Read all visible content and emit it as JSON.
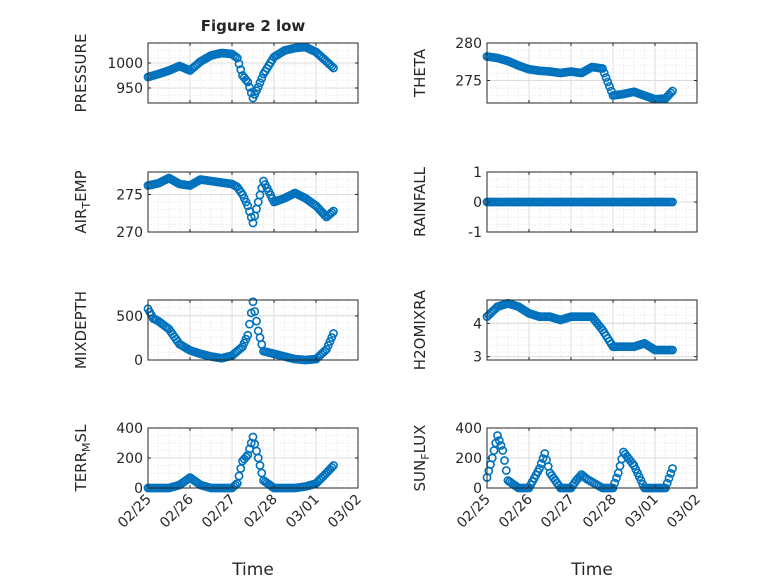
{
  "chart_data": [
    {
      "type": "scatter",
      "title": "Figure 2 low",
      "ylabel": "PRESSURE",
      "xlabel": "",
      "ylim": [
        920,
        1040
      ],
      "yticks": [
        950,
        1000
      ],
      "ytick_labels": [
        "950",
        "1000"
      ],
      "xticks": [
        "02/25",
        "02/26",
        "02/27",
        "02/28",
        "03/01",
        "03/02"
      ],
      "xtick_labels": [],
      "grid": true,
      "marker_color": "#0072BD",
      "x": [
        "02/25",
        "02/25 06:00",
        "02/25 12:00",
        "02/25 18:00",
        "02/26",
        "02/26 06:00",
        "02/26 12:00",
        "02/26 18:00",
        "02/27",
        "02/27 03:00",
        "02/27 06:00",
        "02/27 09:00",
        "02/27 12:00",
        "02/27 15:00",
        "02/27 18:00",
        "02/28",
        "02/28 06:00",
        "02/28 12:00",
        "02/28 18:00",
        "03/01",
        "03/01 06:00",
        "03/01 10:00"
      ],
      "y": [
        972,
        978,
        985,
        994,
        985,
        1003,
        1015,
        1020,
        1018,
        1010,
        975,
        962,
        930,
        952,
        978,
        1012,
        1025,
        1030,
        1032,
        1022,
        1003,
        990
      ]
    },
    {
      "type": "scatter",
      "title": "",
      "ylabel": "THETA",
      "xlabel": "",
      "ylim": [
        272,
        280
      ],
      "yticks": [
        275,
        280
      ],
      "ytick_labels": [
        "275",
        "280"
      ],
      "xticks": [
        "02/25",
        "02/26",
        "02/27",
        "02/28",
        "03/01",
        "03/02"
      ],
      "xtick_labels": [],
      "grid": true,
      "marker_color": "#0072BD",
      "x": [
        "02/25",
        "02/25 06:00",
        "02/25 12:00",
        "02/25 18:00",
        "02/26",
        "02/26 06:00",
        "02/26 12:00",
        "02/26 18:00",
        "02/27",
        "02/27 06:00",
        "02/27 12:00",
        "02/27 18:00",
        "02/28",
        "02/28 06:00",
        "02/28 12:00",
        "02/28 18:00",
        "03/01",
        "03/01 06:00",
        "03/01 10:00"
      ],
      "y": [
        278.2,
        278,
        277.6,
        277,
        276.5,
        276.3,
        276.2,
        276,
        276.2,
        276,
        276.8,
        276.6,
        273,
        273.2,
        273.5,
        273,
        272.5,
        272.6,
        273.6
      ]
    },
    {
      "type": "scatter",
      "title": "",
      "ylabel": "AIR_TEMP",
      "xlabel": "",
      "ylim": [
        270,
        278
      ],
      "yticks": [
        270,
        275
      ],
      "ytick_labels": [
        "270",
        "275"
      ],
      "xticks": [
        "02/25",
        "02/26",
        "02/27",
        "02/28",
        "03/01",
        "03/02"
      ],
      "xtick_labels": [],
      "grid": true,
      "marker_color": "#0072BD",
      "x": [
        "02/25",
        "02/25 06:00",
        "02/25 12:00",
        "02/25 18:00",
        "02/26",
        "02/26 06:00",
        "02/26 12:00",
        "02/26 18:00",
        "02/27",
        "02/27 03:00",
        "02/27 06:00",
        "02/27 09:00",
        "02/27 12:00",
        "02/27 15:00",
        "02/27 18:00",
        "02/28",
        "02/28 06:00",
        "02/28 12:00",
        "02/28 18:00",
        "03/01",
        "03/01 06:00",
        "03/01 10:00"
      ],
      "y": [
        276.2,
        276.5,
        277.2,
        276.4,
        276.2,
        277,
        276.8,
        276.6,
        276.4,
        276,
        275,
        273.5,
        271.2,
        274,
        276.8,
        274,
        274.5,
        275.2,
        274.5,
        273.5,
        272,
        272.8
      ]
    },
    {
      "type": "scatter",
      "title": "",
      "ylabel": "RAINFALL",
      "xlabel": "",
      "ylim": [
        -1,
        1
      ],
      "yticks": [
        -1,
        0,
        1
      ],
      "ytick_labels": [
        "-1",
        "0",
        "1"
      ],
      "xticks": [
        "02/25",
        "02/26",
        "02/27",
        "02/28",
        "03/01",
        "03/02"
      ],
      "xtick_labels": [],
      "grid": true,
      "marker_color": "#0072BD",
      "x": [
        "02/25",
        "02/25 06:00",
        "02/25 12:00",
        "02/25 18:00",
        "02/26",
        "02/26 06:00",
        "02/26 12:00",
        "02/26 18:00",
        "02/27",
        "02/27 06:00",
        "02/27 12:00",
        "02/27 18:00",
        "02/28",
        "02/28 06:00",
        "02/28 12:00",
        "02/28 18:00",
        "03/01",
        "03/01 06:00",
        "03/01 10:00"
      ],
      "y": [
        0,
        0,
        0,
        0,
        0,
        0,
        0,
        0,
        0,
        0,
        0,
        0,
        0,
        0,
        0,
        0,
        0,
        0,
        0
      ]
    },
    {
      "type": "scatter",
      "title": "",
      "ylabel": "MIXDEPTH",
      "xlabel": "",
      "ylim": [
        0,
        680
      ],
      "yticks": [
        0,
        500
      ],
      "ytick_labels": [
        "0",
        "500"
      ],
      "xticks": [
        "02/25",
        "02/26",
        "02/27",
        "02/28",
        "03/01",
        "03/02"
      ],
      "xtick_labels": [],
      "grid": true,
      "marker_color": "#0072BD",
      "x": [
        "02/25",
        "02/25 03:00",
        "02/25 06:00",
        "02/25 12:00",
        "02/25 18:00",
        "02/26",
        "02/26 06:00",
        "02/26 12:00",
        "02/26 18:00",
        "02/27",
        "02/27 06:00",
        "02/27 09:00",
        "02/27 12:00",
        "02/27 15:00",
        "02/27 18:00",
        "02/28",
        "02/28 06:00",
        "02/28 12:00",
        "02/28 18:00",
        "03/01",
        "03/01 06:00",
        "03/01 10:00"
      ],
      "y": [
        580,
        470,
        440,
        350,
        180,
        110,
        70,
        40,
        20,
        50,
        150,
        280,
        660,
        330,
        100,
        70,
        40,
        10,
        0,
        10,
        120,
        300
      ]
    },
    {
      "type": "scatter",
      "title": "",
      "ylabel": "H2OMIXRA",
      "xlabel": "",
      "ylim": [
        2.9,
        4.7
      ],
      "yticks": [
        3,
        4
      ],
      "ytick_labels": [
        "3",
        "4"
      ],
      "xticks": [
        "02/25",
        "02/26",
        "02/27",
        "02/28",
        "03/01",
        "03/02"
      ],
      "xtick_labels": [],
      "grid": true,
      "marker_color": "#0072BD",
      "x": [
        "02/25",
        "02/25 06:00",
        "02/25 12:00",
        "02/25 18:00",
        "02/26",
        "02/26 06:00",
        "02/26 12:00",
        "02/26 18:00",
        "02/27",
        "02/27 06:00",
        "02/27 12:00",
        "02/27 18:00",
        "02/28",
        "02/28 06:00",
        "02/28 12:00",
        "02/28 18:00",
        "03/01",
        "03/01 06:00",
        "03/01 10:00"
      ],
      "y": [
        4.2,
        4.5,
        4.6,
        4.5,
        4.3,
        4.2,
        4.2,
        4.1,
        4.2,
        4.2,
        4.2,
        3.8,
        3.3,
        3.3,
        3.3,
        3.4,
        3.2,
        3.2,
        3.2
      ]
    },
    {
      "type": "scatter",
      "title": "",
      "ylabel": "TERR_MSL",
      "xlabel": "Time",
      "ylim": [
        0,
        400
      ],
      "yticks": [
        0,
        200,
        400
      ],
      "ytick_labels": [
        "0",
        "200",
        "400"
      ],
      "xticks": [
        "02/25",
        "02/26",
        "02/27",
        "02/28",
        "03/01",
        "03/02"
      ],
      "xtick_labels": [
        "02/25",
        "02/26",
        "02/27",
        "02/28",
        "03/01",
        "03/02"
      ],
      "grid": true,
      "marker_color": "#0072BD",
      "x": [
        "02/25",
        "02/25 06:00",
        "02/25 12:00",
        "02/25 18:00",
        "02/26",
        "02/26 06:00",
        "02/26 12:00",
        "02/26 18:00",
        "02/27",
        "02/27 03:00",
        "02/27 06:00",
        "02/27 09:00",
        "02/27 12:00",
        "02/27 15:00",
        "02/27 18:00",
        "02/28",
        "02/28 06:00",
        "02/28 12:00",
        "02/28 18:00",
        "03/01",
        "03/01 06:00",
        "03/01 10:00"
      ],
      "y": [
        0,
        0,
        0,
        20,
        70,
        20,
        0,
        0,
        0,
        30,
        180,
        220,
        340,
        200,
        50,
        0,
        0,
        0,
        10,
        30,
        100,
        150
      ]
    },
    {
      "type": "scatter",
      "title": "",
      "ylabel": "SUN_FLUX",
      "xlabel": "Time",
      "ylim": [
        0,
        400
      ],
      "yticks": [
        0,
        200,
        400
      ],
      "ytick_labels": [
        "0",
        "200",
        "400"
      ],
      "xticks": [
        "02/25",
        "02/26",
        "02/27",
        "02/28",
        "03/01",
        "03/02"
      ],
      "xtick_labels": [
        "02/25",
        "02/26",
        "02/27",
        "02/28",
        "03/01",
        "03/02"
      ],
      "grid": true,
      "marker_color": "#0072BD",
      "x": [
        "02/25",
        "02/25 03:00",
        "02/25 06:00",
        "02/25 09:00",
        "02/25 12:00",
        "02/25 18:00",
        "02/26",
        "02/26 06:00",
        "02/26 09:00",
        "02/26 12:00",
        "02/26 18:00",
        "02/27",
        "02/27 03:00",
        "02/27 06:00",
        "02/27 09:00",
        "02/27 18:00",
        "02/28",
        "02/28 03:00",
        "02/28 06:00",
        "02/28 12:00",
        "02/28 18:00",
        "03/01",
        "03/01 06:00",
        "03/01 10:00"
      ],
      "y": [
        70,
        200,
        350,
        250,
        50,
        0,
        0,
        130,
        230,
        100,
        0,
        0,
        50,
        90,
        60,
        0,
        0,
        100,
        240,
        150,
        0,
        0,
        0,
        130
      ]
    }
  ]
}
